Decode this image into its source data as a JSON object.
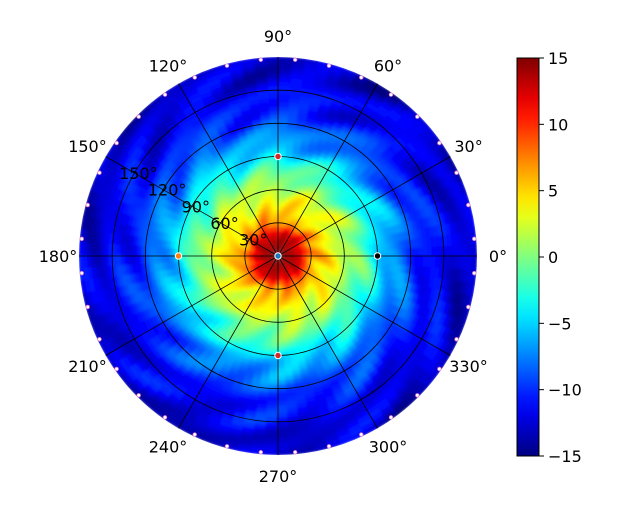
{
  "chart_data": {
    "type": "heatmap",
    "projection": "polar",
    "title": "",
    "angular_ticks_deg": [
      0,
      30,
      60,
      90,
      120,
      150,
      180,
      210,
      240,
      270,
      300,
      330
    ],
    "angular_tick_labels": [
      "0°",
      "30°",
      "60°",
      "90°",
      "120°",
      "150°",
      "180°",
      "210°",
      "240°",
      "270°",
      "300°",
      "330°"
    ],
    "radial_ticks": [
      30,
      60,
      90,
      120,
      150
    ],
    "radial_tick_labels": [
      "30°",
      "60°",
      "90°",
      "120°",
      "150°"
    ],
    "radial_max": 180,
    "radial_label_angle_deg": 150,
    "grid": true,
    "colorbar": {
      "colormap": "jet",
      "range": [
        -15,
        15
      ],
      "ticks": [
        -15,
        -10,
        -5,
        0,
        5,
        10,
        15
      ],
      "tick_labels": [
        "−15",
        "−10",
        "−5",
        "0",
        "5",
        "10",
        "15"
      ],
      "position": "right"
    },
    "radial_profile": {
      "r": [
        0,
        10,
        20,
        30,
        45,
        60,
        80,
        100,
        120,
        140,
        160,
        180
      ],
      "value": [
        15,
        14,
        12.5,
        7,
        4,
        2,
        -2,
        -6,
        -9,
        -11,
        -12,
        -13
      ]
    },
    "markers": [
      {
        "angle_deg": 0,
        "r": 90,
        "color": "#000000"
      },
      {
        "angle_deg": 90,
        "r": 90,
        "color": "#d62728"
      },
      {
        "angle_deg": 180,
        "r": 90,
        "color": "#ff7f0e"
      },
      {
        "angle_deg": 270,
        "r": 90,
        "color": "#d62728"
      },
      {
        "angle_deg": 0,
        "r": 0,
        "color": "#1f77b4"
      }
    ],
    "colors": {
      "grid": "#000000",
      "rim_points": "#e377c2"
    }
  }
}
